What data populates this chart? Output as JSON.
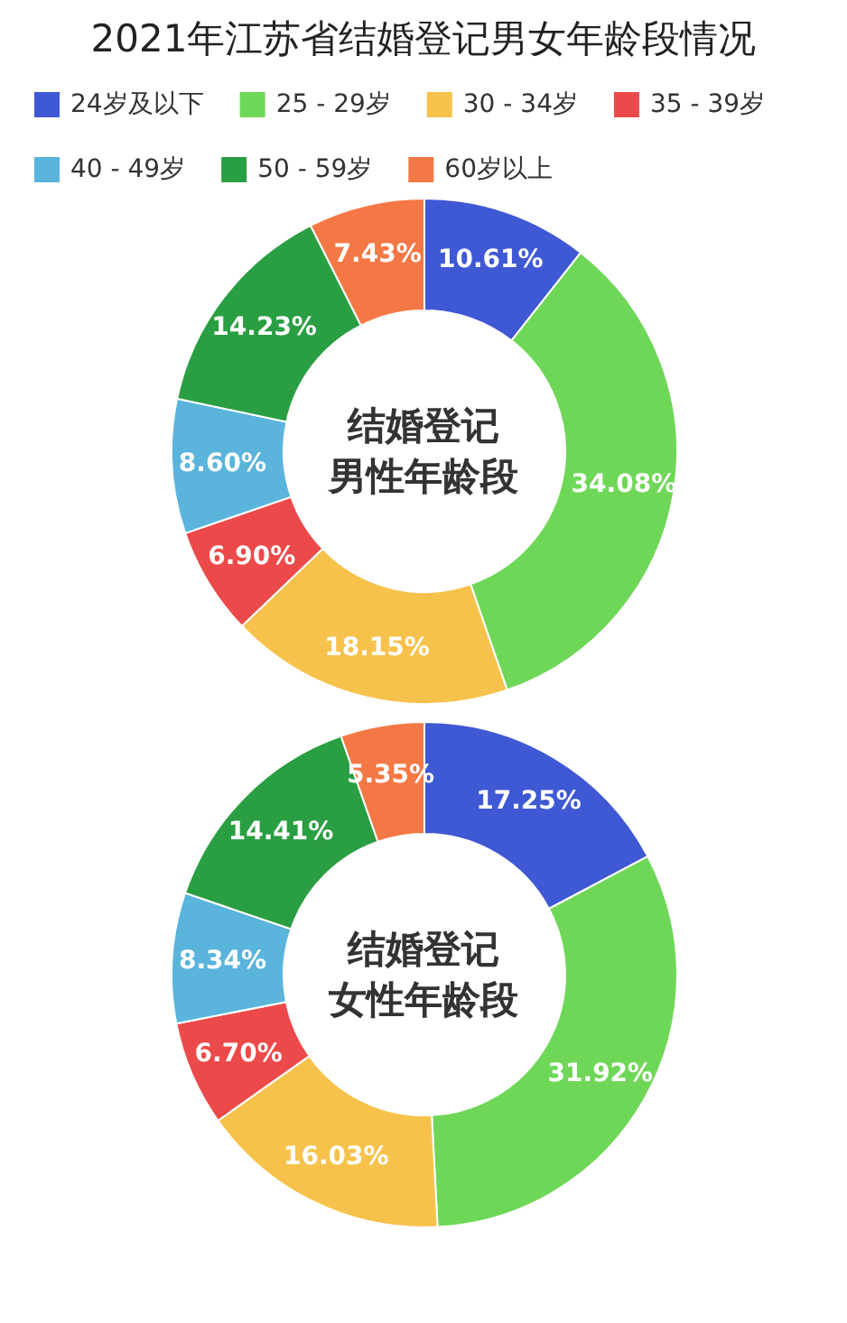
{
  "chart_data": [
    {
      "type": "donut",
      "title": "2021年江苏省结婚登记男女年龄段情况",
      "annotations": [
        "结婚登记",
        "男性年龄段"
      ],
      "legend": "top",
      "categories": [
        "24岁及以下",
        "25 - 29岁",
        "30 - 34岁",
        "35 - 39岁",
        "40 - 49岁",
        "50 - 59岁",
        "60岁以上"
      ],
      "values": [
        10.61,
        34.08,
        18.15,
        6.9,
        8.6,
        14.23,
        7.43
      ],
      "value_labels": [
        "10.61%",
        "34.08%",
        "18.15%",
        "6.90%",
        "8.60%",
        "14.23%",
        "7.43%"
      ],
      "colors": [
        "#3f58d4",
        "#6fd758",
        "#f7c24c",
        "#ec4a4a",
        "#5ab4dc",
        "#2a9e42",
        "#f47845"
      ]
    },
    {
      "type": "donut",
      "annotations": [
        "结婚登记",
        "女性年龄段"
      ],
      "values": [
        17.25,
        31.92,
        16.03,
        6.7,
        8.34,
        14.41,
        5.35
      ],
      "value_labels": [
        "17.25%",
        "31.92%",
        "16.03%",
        "6.70%",
        "8.34%",
        "14.41%",
        "5.35%"
      ],
      "colors": [
        "#3f58d4",
        "#6fd758",
        "#f7c24c",
        "#ec4a4a",
        "#5ab4dc",
        "#2a9e42",
        "#f47845"
      ]
    }
  ]
}
